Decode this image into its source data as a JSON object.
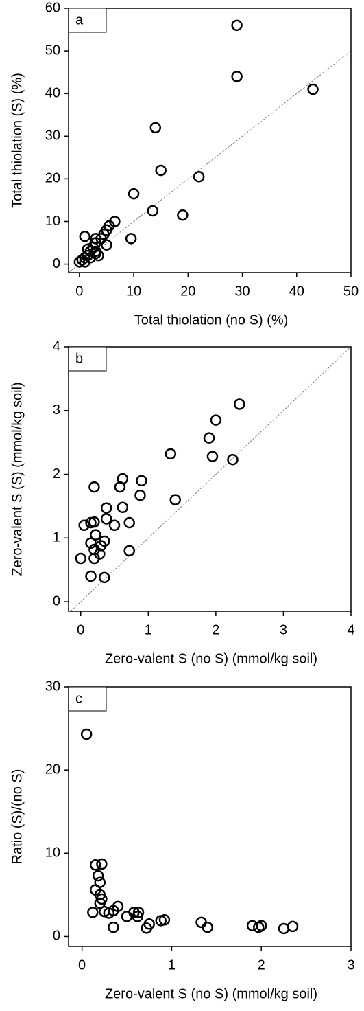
{
  "chart_data": [
    {
      "type": "scatter",
      "label": "a",
      "x_label": "Total thiolation (no S) (%)",
      "y_label": "Total thiolation (S) (%)",
      "xlim": [
        -2,
        50
      ],
      "ylim": [
        -2,
        60
      ],
      "xticks": [
        0,
        10,
        20,
        30,
        40,
        50
      ],
      "yticks": [
        0,
        10,
        20,
        30,
        40,
        50,
        60
      ],
      "color": "#000000",
      "identity_line": true,
      "x": [
        43,
        29,
        29,
        22,
        19,
        15,
        14,
        13.5,
        10,
        9.5,
        6.5,
        5.5,
        5,
        4.5,
        5,
        4,
        3,
        3,
        2.5,
        3,
        3,
        3.5,
        2,
        1.5,
        1.5,
        1,
        1,
        0.5,
        0,
        1,
        2
      ],
      "y": [
        41,
        56,
        44,
        20.5,
        11.5,
        22,
        32,
        12.5,
        16.5,
        6,
        10,
        9,
        8,
        7,
        4.5,
        6,
        6,
        5,
        4,
        3,
        2.5,
        2,
        3,
        3.5,
        2,
        6.5,
        1.5,
        1,
        0.5,
        0.5,
        1.5
      ]
    },
    {
      "type": "scatter",
      "label": "b",
      "x_label": "Zero-valent S (no S) (mmol/kg soil)",
      "y_label": "Zero-valent S (S) (mmol/kg soil)",
      "xlim": [
        -0.18,
        4
      ],
      "ylim": [
        -0.15,
        4
      ],
      "xticks": [
        0,
        1,
        2,
        3,
        4
      ],
      "yticks": [
        0,
        1,
        2,
        3,
        4
      ],
      "color": "#000000",
      "identity_line": true,
      "x": [
        2.35,
        2,
        1.9,
        1.95,
        2.25,
        1.33,
        1.4,
        0.9,
        0.62,
        0.58,
        0.88,
        0.62,
        0.38,
        0.5,
        0.72,
        0.72,
        0.38,
        0.2,
        0.05,
        0.15,
        0.2,
        0.22,
        0.15,
        0.2,
        0.2,
        0.3,
        0.28,
        0.35,
        0,
        0.15,
        0.35
      ],
      "y": [
        3.1,
        2.85,
        2.57,
        2.28,
        2.23,
        2.32,
        1.6,
        1.9,
        1.93,
        1.8,
        1.67,
        1.48,
        1.47,
        1.2,
        1.24,
        0.8,
        1.3,
        1.8,
        1.2,
        1.24,
        1.25,
        1.05,
        0.92,
        0.82,
        0.68,
        0.88,
        0.75,
        0.95,
        0.68,
        0.4,
        0.38
      ]
    },
    {
      "type": "scatter",
      "label": "c",
      "x_label": "Zero-valent S (no S) (mmol/kg soil)",
      "y_label": "Ratio (S)/(no S)",
      "xlim": [
        -0.15,
        3
      ],
      "ylim": [
        -1.2,
        30
      ],
      "xticks": [
        0,
        1,
        2,
        3
      ],
      "yticks": [
        0,
        10,
        20,
        30
      ],
      "color": "#000000",
      "identity_line": false,
      "x": [
        0.05,
        0.15,
        0.22,
        0.18,
        0.2,
        0.15,
        0.2,
        0.22,
        0.2,
        0.12,
        0.25,
        0.3,
        0.35,
        0.4,
        0.35,
        0.5,
        0.58,
        0.63,
        0.62,
        0.72,
        0.75,
        0.88,
        0.92,
        1.33,
        1.4,
        1.9,
        1.97,
        2,
        2.25,
        2.35
      ],
      "y": [
        24.3,
        8.6,
        8.7,
        7.3,
        6.5,
        5.6,
        5,
        4.5,
        4,
        2.9,
        3,
        2.8,
        3.1,
        3.6,
        1.1,
        2.4,
        2.9,
        2.9,
        2.4,
        1,
        1.5,
        1.9,
        2,
        1.7,
        1.1,
        1.3,
        1.1,
        1.3,
        0.95,
        1.2
      ]
    }
  ]
}
